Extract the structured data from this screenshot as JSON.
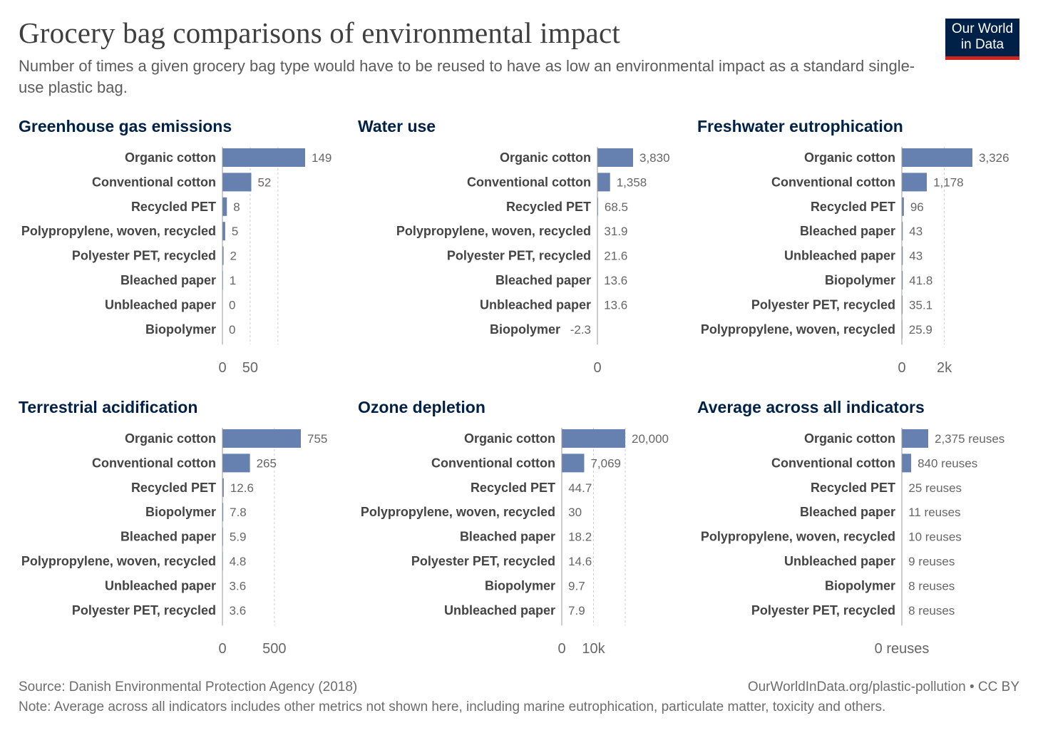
{
  "header": {
    "title": "Grocery bag comparisons of environmental impact",
    "subtitle": "Number of times a given grocery bag type would have to be reused to have as low an environmental impact as a standard single-use plastic bag.",
    "logo_line1": "Our World",
    "logo_line2": "in Data"
  },
  "footer": {
    "source": "Source: Danish Environmental Protection Agency (2018)",
    "credit": "OurWorldInData.org/plastic-pollution • CC BY",
    "note": "Note: Average across all indicators includes other metrics not shown here, including marine eutrophication, particulate matter, toxicity and others."
  },
  "colors": {
    "bar": "#6681b0",
    "axis": "#999999",
    "grid": "#cccccc",
    "title": "#002147",
    "logo_bg": "#002147",
    "logo_accent": "#ce261e"
  },
  "chart_data": [
    {
      "type": "bar",
      "orientation": "horizontal",
      "title": "Greenhouse gas emissions",
      "categories": [
        "Organic cotton",
        "Conventional cotton",
        "Recycled PET",
        "Polypropylene, woven, recycled",
        "Polyester PET, recycled",
        "Bleached paper",
        "Unbleached paper",
        "Biopolymer"
      ],
      "values": [
        149,
        52,
        8,
        5,
        2,
        1,
        0,
        0
      ],
      "value_labels": [
        "149",
        "52",
        "8",
        "5",
        "2",
        "1",
        "0",
        "0"
      ],
      "xlim": [
        0,
        149
      ],
      "xticks": [
        {
          "value": 0,
          "label": "0"
        },
        {
          "value": 50,
          "label": "50"
        }
      ],
      "gridlines": [
        50,
        100
      ]
    },
    {
      "type": "bar",
      "orientation": "horizontal",
      "title": "Water use",
      "categories": [
        "Organic cotton",
        "Conventional cotton",
        "Recycled PET",
        "Polypropylene, woven, recycled",
        "Polyester PET, recycled",
        "Bleached paper",
        "Unbleached paper",
        "Biopolymer"
      ],
      "values": [
        3830,
        1358,
        68.5,
        31.9,
        21.6,
        13.6,
        13.6,
        -2.3
      ],
      "value_labels": [
        "3,830",
        "1,358",
        "68.5",
        "31.9",
        "21.6",
        "13.6",
        "13.6",
        "-2.3"
      ],
      "xlim": [
        0,
        3830
      ],
      "xticks": [
        {
          "value": 0,
          "label": "0"
        }
      ],
      "gridlines": []
    },
    {
      "type": "bar",
      "orientation": "horizontal",
      "title": "Freshwater eutrophication",
      "categories": [
        "Organic cotton",
        "Conventional cotton",
        "Recycled PET",
        "Bleached paper",
        "Unbleached paper",
        "Biopolymer",
        "Polyester PET, recycled",
        "Polypropylene, woven, recycled"
      ],
      "values": [
        3326,
        1178,
        96,
        43,
        43,
        41.8,
        35.1,
        25.9
      ],
      "value_labels": [
        "3,326",
        "1,178",
        "96",
        "43",
        "43",
        "41.8",
        "35.1",
        "25.9"
      ],
      "xlim": [
        0,
        3326
      ],
      "xticks": [
        {
          "value": 0,
          "label": "0"
        },
        {
          "value": 2000,
          "label": "2k"
        }
      ],
      "gridlines": [
        2000
      ]
    },
    {
      "type": "bar",
      "orientation": "horizontal",
      "title": "Terrestrial acidification",
      "categories": [
        "Organic cotton",
        "Conventional cotton",
        "Recycled PET",
        "Biopolymer",
        "Bleached paper",
        "Polypropylene, woven, recycled",
        "Unbleached paper",
        "Polyester PET, recycled"
      ],
      "values": [
        755,
        265,
        12.6,
        7.8,
        5.9,
        4.8,
        3.6,
        3.6
      ],
      "value_labels": [
        "755",
        "265",
        "12.6",
        "7.8",
        "5.9",
        "4.8",
        "3.6",
        "3.6"
      ],
      "xlim": [
        0,
        755
      ],
      "xticks": [
        {
          "value": 0,
          "label": "0"
        },
        {
          "value": 500,
          "label": "500"
        }
      ],
      "gridlines": [
        500
      ]
    },
    {
      "type": "bar",
      "orientation": "horizontal",
      "title": "Ozone depletion",
      "categories": [
        "Organic cotton",
        "Conventional cotton",
        "Recycled PET",
        "Polypropylene, woven, recycled",
        "Bleached paper",
        "Polyester PET, recycled",
        "Biopolymer",
        "Unbleached paper"
      ],
      "values": [
        20000,
        7069,
        44.7,
        30,
        18.2,
        14.6,
        9.7,
        7.9
      ],
      "value_labels": [
        "20,000",
        "7,069",
        "44.7",
        "30",
        "18.2",
        "14.6",
        "9.7",
        "7.9"
      ],
      "xlim": [
        0,
        20000
      ],
      "xticks": [
        {
          "value": 0,
          "label": "0"
        },
        {
          "value": 10000,
          "label": "10k"
        }
      ],
      "gridlines": [
        10000,
        20000
      ]
    },
    {
      "type": "bar",
      "orientation": "horizontal",
      "title": "Average across all indicators",
      "categories": [
        "Organic cotton",
        "Conventional cotton",
        "Recycled PET",
        "Bleached paper",
        "Polypropylene, woven, recycled",
        "Unbleached paper",
        "Biopolymer",
        "Polyester PET, recycled"
      ],
      "values": [
        2375,
        840,
        25,
        11,
        10,
        9,
        8,
        8
      ],
      "value_labels": [
        "2,375 reuses",
        "840 reuses",
        "25 reuses",
        "11 reuses",
        "10 reuses",
        "9 reuses",
        "8 reuses",
        "8 reuses"
      ],
      "xlim": [
        0,
        2375
      ],
      "xticks": [
        {
          "value": 0,
          "label": "0 reuses"
        }
      ],
      "gridlines": []
    }
  ]
}
